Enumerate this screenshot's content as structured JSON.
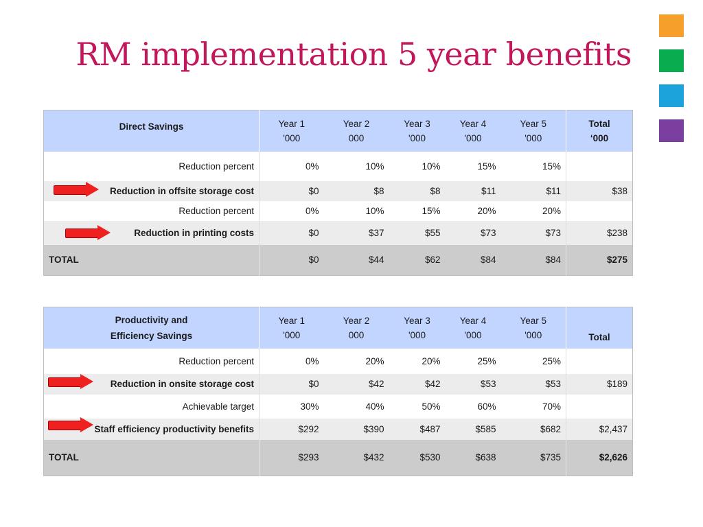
{
  "title": "RM implementation 5 year benefits",
  "colors": {
    "title": "#c2185b",
    "header_bg": "#c2d5ff",
    "total_bg": "#cccccc",
    "alt_row_bg": "#ececec",
    "arrow": "#ee2020",
    "squares": [
      "#f6a02b",
      "#0aac50",
      "#1da3dc",
      "#7b3fa0"
    ]
  },
  "table1": {
    "header": {
      "label": "Direct Savings",
      "years": [
        {
          "l1": "Year 1",
          "l2": "'000"
        },
        {
          "l1": "Year 2",
          "l2": "000"
        },
        {
          "l1": "Year 3",
          "l2": "'000"
        },
        {
          "l1": "Year 4",
          "l2": "'000"
        },
        {
          "l1": "Year 5",
          "l2": "'000"
        }
      ],
      "total": {
        "l1": "Total",
        "l2": "‘000"
      }
    },
    "rows": [
      {
        "label": "Reduction percent",
        "values": [
          "0%",
          "10%",
          "10%",
          "15%",
          "15%"
        ],
        "total": ""
      },
      {
        "label": "Reduction in offsite storage cost",
        "values": [
          "$0",
          "$8",
          "$8",
          "$11",
          "$11"
        ],
        "total": "$38"
      },
      {
        "label": "Reduction percent",
        "values": [
          "0%",
          "10%",
          "15%",
          "20%",
          "20%"
        ],
        "total": ""
      },
      {
        "label": "Reduction in printing costs",
        "values": [
          "$0",
          "$37",
          "$55",
          "$73",
          "$73"
        ],
        "total": "$238"
      }
    ],
    "total_row": {
      "label": "TOTAL",
      "values": [
        "$0",
        "$44",
        "$62",
        "$84",
        "$84"
      ],
      "total": "$275"
    }
  },
  "table2": {
    "header": {
      "label_l1": "Productivity and",
      "label_l2": "Efficiency Savings",
      "years": [
        {
          "l1": "Year 1",
          "l2": "'000"
        },
        {
          "l1": "Year 2",
          "l2": "000"
        },
        {
          "l1": "Year 3",
          "l2": "'000"
        },
        {
          "l1": "Year 4",
          "l2": "'000"
        },
        {
          "l1": "Year 5",
          "l2": "'000"
        }
      ],
      "total": "Total"
    },
    "rows": [
      {
        "label": "Reduction percent",
        "values": [
          "0%",
          "20%",
          "20%",
          "25%",
          "25%"
        ],
        "total": ""
      },
      {
        "label": "Reduction in onsite storage cost",
        "values": [
          "$0",
          "$42",
          "$42",
          "$53",
          "$53"
        ],
        "total": "$189"
      },
      {
        "label": "Achievable target",
        "values": [
          "30%",
          "40%",
          "50%",
          "60%",
          "70%"
        ],
        "total": ""
      },
      {
        "label": "Staff efficiency productivity benefits",
        "values": [
          "$292",
          "$390",
          "$487",
          "$585",
          "$682"
        ],
        "total": "$2,437"
      }
    ],
    "total_row": {
      "label": "TOTAL",
      "values": [
        "$293",
        "$432",
        "$530",
        "$638",
        "$735"
      ],
      "total": "$2,626"
    }
  }
}
